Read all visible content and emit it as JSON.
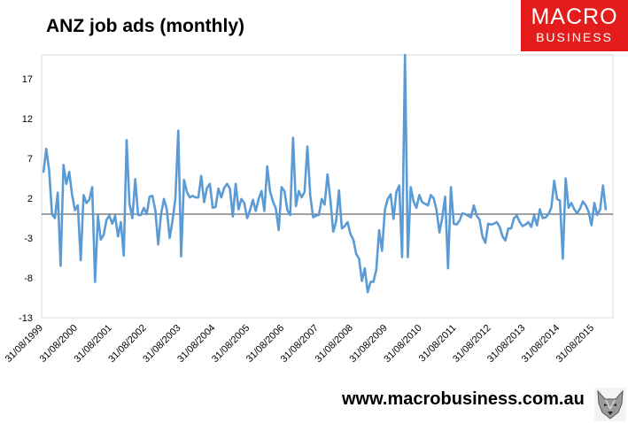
{
  "title": "ANZ job ads (monthly)",
  "brand": {
    "line1": "MACRO",
    "line2": "BUSINESS",
    "color": "#e51c1c",
    "url": "www.macrobusiness.com.au",
    "mascot_icon": "wolf-icon"
  },
  "chart_data": {
    "type": "line",
    "title": "ANZ job ads (monthly)",
    "xlabel": "",
    "ylabel": "",
    "ylim": [
      -13,
      20
    ],
    "yticks": [
      17,
      12,
      7,
      2,
      -3,
      -8,
      -13
    ],
    "grid": false,
    "legend": "none",
    "line_color": "#5b9bd5",
    "zero_line": true,
    "x_tick_labels": [
      "31/08/1999",
      "31/08/2000",
      "31/08/2001",
      "31/08/2002",
      "31/08/2003",
      "31/08/2004",
      "31/08/2005",
      "31/08/2006",
      "31/08/2007",
      "31/08/2008",
      "31/08/2009",
      "31/08/2010",
      "31/08/2011",
      "31/08/2012",
      "31/08/2013",
      "31/08/2014",
      "31/08/2015"
    ],
    "x_start": "1999-08-31",
    "series": [
      {
        "values": [
          5.2,
          8.2,
          5.5,
          0.0,
          -0.5,
          2.7,
          -6.5,
          6.2,
          3.8,
          5.3,
          2.4,
          0.5,
          1.1,
          -5.8,
          2.4,
          1.4,
          1.8,
          3.4,
          -8.5,
          -0.2,
          -3.2,
          -2.6,
          -0.7,
          -0.2,
          -1.2,
          -0.2,
          -2.8,
          -1.0,
          -5.2,
          9.3,
          1.3,
          -0.5,
          4.4,
          -0.1,
          -0.1,
          0.8,
          0.0,
          2.2,
          2.3,
          0.5,
          -3.8,
          0.0,
          1.9,
          0.6,
          -3.0,
          -0.8,
          2.0,
          10.5,
          -5.3,
          4.3,
          2.8,
          2.1,
          2.3,
          2.1,
          2.1,
          4.8,
          1.5,
          3.3,
          3.8,
          0.8,
          0.9,
          3.2,
          2.1,
          3.3,
          3.8,
          3.2,
          -0.3,
          3.8,
          0.6,
          1.9,
          1.4,
          -0.5,
          0.5,
          1.8,
          0.4,
          1.9,
          2.9,
          0.4,
          6.0,
          2.8,
          1.6,
          0.7,
          -2.0,
          3.4,
          2.9,
          0.5,
          -0.1,
          9.6,
          1.0,
          2.9,
          2.1,
          2.8,
          8.5,
          2.3,
          -0.4,
          -0.2,
          -0.1,
          1.9,
          1.2,
          5.0,
          1.8,
          -2.2,
          -0.9,
          3.0,
          -1.8,
          -1.5,
          -1.0,
          -2.5,
          -3.2,
          -5.0,
          -5.6,
          -8.4,
          -6.8,
          -9.8,
          -8.5,
          -8.5,
          -7.0,
          -2.0,
          -4.6,
          0.6,
          1.9,
          2.5,
          -0.6,
          2.8,
          3.6,
          -5.4,
          20.0,
          -5.4,
          3.4,
          1.6,
          0.8,
          2.4,
          1.5,
          1.3,
          1.1,
          2.4,
          2.0,
          0.5,
          -2.3,
          -0.4,
          2.2,
          -6.8,
          3.4,
          -1.2,
          -1.3,
          -0.8,
          0.1,
          0.0,
          -0.2,
          -0.4,
          1.1,
          -0.2,
          -0.7,
          -2.8,
          -3.6,
          -1.2,
          -1.3,
          -1.2,
          -1.0,
          -1.6,
          -2.8,
          -3.3,
          -1.8,
          -1.8,
          -0.5,
          -0.2,
          -1.0,
          -1.5,
          -1.3,
          -1.0,
          -1.6,
          -0.2,
          -1.4,
          0.6,
          -0.5,
          -0.4,
          0.0,
          0.8,
          4.2,
          1.9,
          1.7,
          -5.6,
          4.5,
          0.8,
          1.4,
          0.6,
          0.1,
          0.7,
          1.6,
          1.1,
          0.3,
          -1.4,
          1.4,
          -0.1,
          0.6,
          3.6,
          0.5
        ]
      }
    ]
  }
}
